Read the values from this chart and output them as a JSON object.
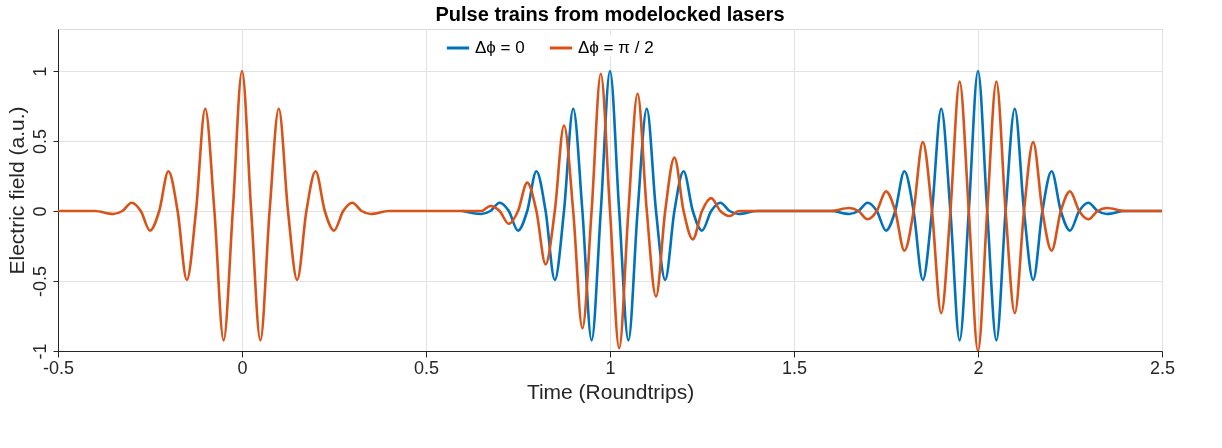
{
  "chart_data": {
    "type": "line",
    "title": "Pulse trains from modelocked lasers",
    "xlabel": "Time (Roundtrips)",
    "ylabel": "Electric field (a.u.)",
    "x": [
      -0.5,
      -0.4,
      -0.35,
      -0.325,
      -0.3,
      -0.275,
      -0.25,
      -0.225,
      -0.2,
      -0.175,
      -0.15,
      -0.125,
      -0.1,
      -0.075,
      -0.05,
      -0.025,
      0,
      0.025,
      0.05,
      0.075,
      0.1,
      0.125,
      0.15,
      0.175,
      0.2,
      0.225,
      0.25,
      0.275,
      0.3,
      0.325,
      0.35,
      0.4,
      0.6,
      0.65,
      0.675,
      0.7,
      0.725,
      0.75,
      0.775,
      0.8,
      0.825,
      0.85,
      0.875,
      0.9,
      0.925,
      0.95,
      0.975,
      1,
      1.025,
      1.05,
      1.075,
      1.1,
      1.125,
      1.15,
      1.175,
      1.2,
      1.225,
      1.25,
      1.275,
      1.3,
      1.325,
      1.35,
      1.4,
      1.6,
      1.65,
      1.675,
      1.7,
      1.725,
      1.75,
      1.775,
      1.8,
      1.825,
      1.85,
      1.875,
      1.9,
      1.925,
      1.95,
      1.975,
      2,
      2.025,
      2.05,
      2.075,
      2.1,
      2.125,
      2.15,
      2.175,
      2.2,
      2.225,
      2.25,
      2.275,
      2.3,
      2.325,
      2.35,
      2.4,
      2.5
    ],
    "series": [
      {
        "name": "Δϕ = 0",
        "color": "#0072bd",
        "values": [
          null,
          null,
          null,
          null,
          null,
          null,
          null,
          null,
          null,
          null,
          null,
          null,
          null,
          null,
          null,
          null,
          null,
          null,
          null,
          null,
          null,
          null,
          null,
          null,
          null,
          null,
          null,
          null,
          null,
          null,
          null,
          null,
          0,
          -0.021,
          0,
          0.059,
          0,
          -0.14,
          0,
          0.284,
          0,
          -0.492,
          0,
          0.73,
          0,
          -0.924,
          0,
          1,
          0,
          -0.924,
          0,
          0.73,
          0,
          -0.492,
          0,
          0.284,
          0,
          -0.14,
          0,
          0.059,
          0,
          -0.021,
          0,
          0,
          -0.021,
          0,
          0.059,
          0,
          -0.14,
          0,
          0.284,
          0,
          -0.492,
          0,
          0.73,
          0,
          -0.924,
          0,
          1,
          0,
          -0.924,
          0,
          0.73,
          0,
          -0.492,
          0,
          0.284,
          0,
          -0.14,
          0,
          0.059,
          0,
          -0.021,
          0,
          0
        ]
      },
      {
        "name": "Δϕ = π / 2",
        "color": "#d95319",
        "values": [
          0,
          0,
          -0.021,
          0,
          0.059,
          0,
          -0.14,
          0,
          0.284,
          0,
          -0.492,
          0,
          0.73,
          0,
          -0.924,
          0,
          1,
          0,
          -0.924,
          0,
          0.73,
          0,
          -0.492,
          0,
          0.284,
          0,
          -0.14,
          0,
          0.059,
          0,
          -0.021,
          0,
          0,
          0,
          0.036,
          0,
          -0.092,
          0,
          0.203,
          0,
          -0.381,
          0,
          0.611,
          0,
          -0.838,
          0,
          0.98,
          0,
          -0.98,
          0,
          0.838,
          0,
          -0.611,
          0,
          0.381,
          0,
          -0.203,
          0,
          0.092,
          0,
          -0.036,
          0,
          0,
          0,
          0.021,
          0,
          -0.059,
          0,
          0.14,
          0,
          -0.284,
          0,
          0.492,
          0,
          -0.73,
          0,
          0.924,
          0,
          -1,
          0,
          0.924,
          0,
          -0.73,
          0,
          0.492,
          0,
          -0.284,
          0,
          0.14,
          0,
          -0.059,
          0,
          0.021,
          0,
          0
        ]
      }
    ],
    "xlim": [
      -0.5,
      2.5
    ],
    "xticks": [
      -0.5,
      0,
      0.5,
      1,
      1.5,
      2,
      2.5
    ],
    "ylim": [
      -1,
      1.3
    ],
    "yticks": [
      -1,
      -0.5,
      0,
      0.5,
      1
    ],
    "grid": true,
    "legend": "top",
    "marker": "none",
    "line_style": "solid"
  }
}
